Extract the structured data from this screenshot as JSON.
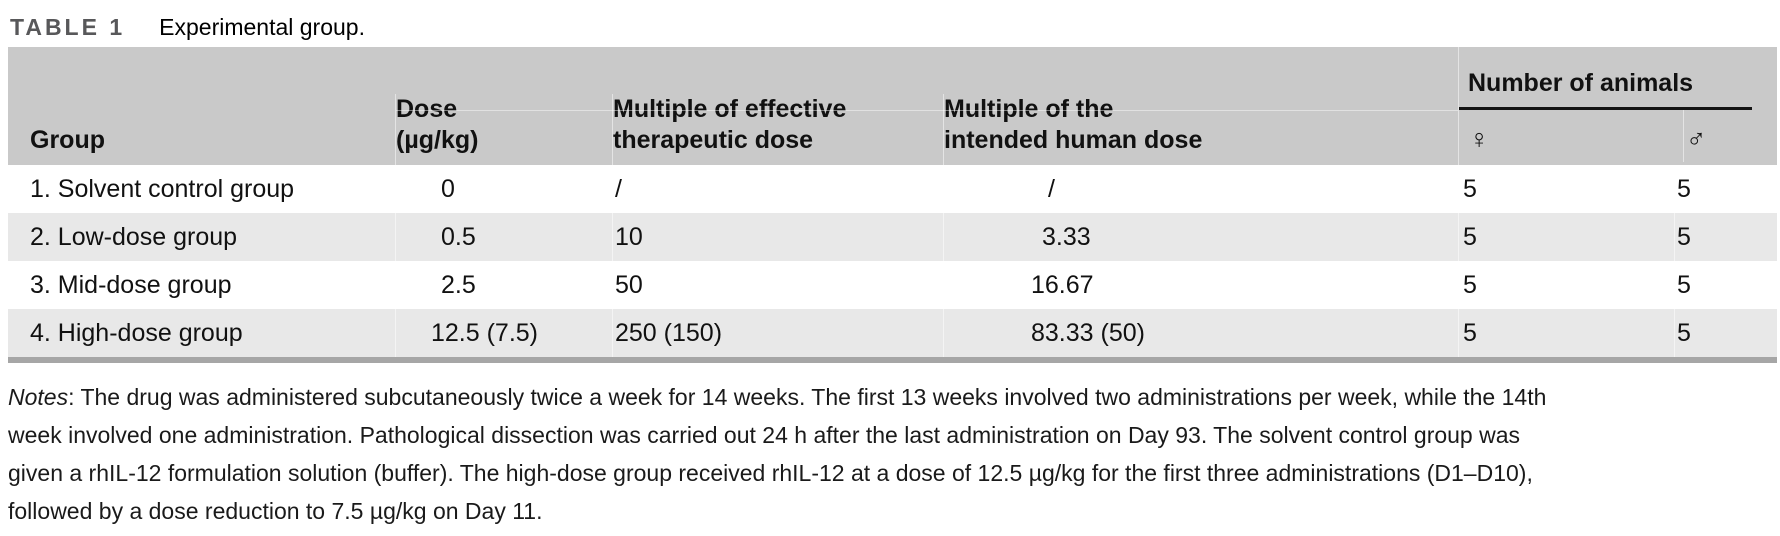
{
  "caption": {
    "label": "TABLE 1",
    "title": "Experimental group."
  },
  "table": {
    "columns": {
      "group": "Group",
      "dose_line1": "Dose",
      "dose_line2": "(µg/kg)",
      "mult_eff_line1": "Multiple of effective",
      "mult_eff_line2": "therapeutic dose",
      "mult_human_line1": "Multiple of the",
      "mult_human_line2": "intended human dose",
      "animals_group": "Number of animals",
      "female_symbol": "♀",
      "male_symbol": "♂"
    },
    "rows": [
      {
        "group": "1. Solvent control group",
        "dose": "0",
        "mult_eff": "/",
        "mult_human": "/",
        "female": "5",
        "male": "5"
      },
      {
        "group": "2. Low-dose group",
        "dose": "0.5",
        "mult_eff": "10",
        "mult_human": "3.33",
        "female": "5",
        "male": "5"
      },
      {
        "group": "3. Mid-dose group",
        "dose": "2.5",
        "mult_eff": "50",
        "mult_human": "16.67",
        "female": "5",
        "male": "5"
      },
      {
        "group": "4. High-dose group",
        "dose": "12.5 (7.5)",
        "mult_eff": "250 (150)",
        "mult_human": "83.33 (50)",
        "female": "5",
        "male": "5"
      }
    ]
  },
  "notes": {
    "label": "Notes",
    "line1_after_label": ": The drug was administered subcutaneously twice a week for 14 weeks. The first 13 weeks involved two administrations per week, while the 14th",
    "line2": "week involved one administration. Pathological dissection was carried out 24 h after the last administration on Day 93. The solvent control group was",
    "line3": "given a rhIL-12 formulation solution (buffer). The high-dose group received rhIL-12 at a dose of 12.5 µg/kg for the first three administrations (D1–D10),",
    "line4": "followed by a dose reduction to 7.5 µg/kg on Day 11."
  },
  "colors": {
    "header_bg": "#c9c9c9",
    "row_alt_bg": "#e8e8e8",
    "table_bottom_border": "#a6a6a6",
    "caption_label": "#58585a",
    "text": "#111111"
  }
}
